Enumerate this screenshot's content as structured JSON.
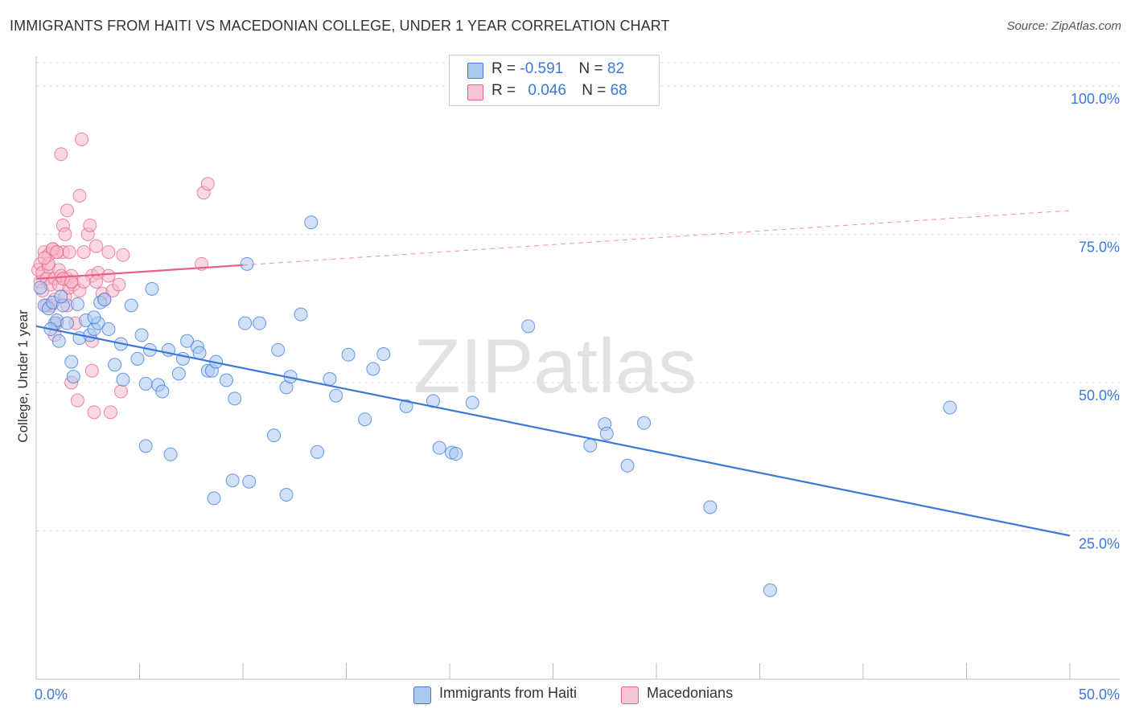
{
  "title": "IMMIGRANTS FROM HAITI VS MACEDONIAN COLLEGE, UNDER 1 YEAR CORRELATION CHART",
  "source": "Source: ZipAtlas.com",
  "watermark": "ZIPatlas",
  "colors": {
    "blue": "#3b78d8",
    "blue_fill": "#aac8f0",
    "pink": "#e8608a",
    "pink_fill": "#f6b8cb",
    "grid": "#dddddd"
  },
  "legend": {
    "row1": {
      "r_label": "R = ",
      "r_value": "-0.591",
      "n_label": "N = ",
      "n_value": "82"
    },
    "row2": {
      "r_label": "R = ",
      "r_value": "0.046",
      "n_label": "N = ",
      "n_value": "68"
    }
  },
  "chart_data": {
    "type": "scatter",
    "title": "IMMIGRANTS FROM HAITI VS MACEDONIAN COLLEGE, UNDER 1 YEAR CORRELATION CHART",
    "xlabel": "",
    "ylabel": "College, Under 1 year",
    "xlim": [
      0,
      50
    ],
    "ylim": [
      0,
      105
    ],
    "x_tick_labels": [
      "0.0%",
      "50.0%"
    ],
    "y_tick_labels": [
      "25.0%",
      "50.0%",
      "75.0%",
      "100.0%"
    ],
    "y_ticks": [
      25,
      50,
      75,
      100
    ],
    "grid": true,
    "legend_position": "bottom",
    "series": [
      {
        "name": "Immigrants from Haiti",
        "color": "#3b78d8",
        "trend": {
          "x": [
            0,
            50
          ],
          "y": [
            59.5,
            24.2
          ],
          "style": "solid"
        },
        "points": [
          [
            0.2,
            66
          ],
          [
            0.4,
            63
          ],
          [
            0.6,
            62.5
          ],
          [
            0.8,
            63.5
          ],
          [
            0.9,
            60
          ],
          [
            1.0,
            60.5
          ],
          [
            1.1,
            57
          ],
          [
            1.3,
            63
          ],
          [
            1.5,
            60
          ],
          [
            1.7,
            53.5
          ],
          [
            1.8,
            51
          ],
          [
            2.0,
            63.2
          ],
          [
            2.1,
            57.5
          ],
          [
            2.4,
            60.5
          ],
          [
            2.6,
            58
          ],
          [
            2.8,
            59
          ],
          [
            3.0,
            60
          ],
          [
            3.1,
            63.5
          ],
          [
            3.3,
            64
          ],
          [
            3.5,
            59
          ],
          [
            3.8,
            53
          ],
          [
            4.1,
            56.5
          ],
          [
            4.2,
            50.5
          ],
          [
            4.6,
            63
          ],
          [
            4.9,
            54
          ],
          [
            5.1,
            58
          ],
          [
            5.3,
            49.8
          ],
          [
            5.5,
            55.5
          ],
          [
            5.9,
            49.6
          ],
          [
            6.1,
            48.5
          ],
          [
            6.4,
            55.5
          ],
          [
            6.9,
            51.5
          ],
          [
            7.1,
            54
          ],
          [
            7.3,
            57
          ],
          [
            7.8,
            56
          ],
          [
            7.9,
            55
          ],
          [
            8.3,
            52
          ],
          [
            8.5,
            52
          ],
          [
            8.7,
            53.5
          ],
          [
            9.2,
            50.4
          ],
          [
            9.6,
            47.3
          ],
          [
            10.1,
            60
          ],
          [
            10.8,
            60
          ],
          [
            11.7,
            55.5
          ],
          [
            12.1,
            49.2
          ],
          [
            12.3,
            51
          ],
          [
            12.8,
            61.5
          ],
          [
            14.2,
            50.6
          ],
          [
            14.5,
            47.8
          ],
          [
            15.1,
            54.7
          ],
          [
            15.9,
            43.8
          ],
          [
            16.3,
            52.3
          ],
          [
            16.8,
            54.8
          ],
          [
            17.9,
            46
          ],
          [
            19.2,
            46.9
          ],
          [
            21.1,
            46.6
          ],
          [
            23.8,
            59.5
          ],
          [
            27.5,
            43
          ],
          [
            27.6,
            41.4
          ],
          [
            29.4,
            43.2
          ],
          [
            5.3,
            39.3
          ],
          [
            6.5,
            37.9
          ],
          [
            8.6,
            30.5
          ],
          [
            9.5,
            33.5
          ],
          [
            10.3,
            33.3
          ],
          [
            11.5,
            41.1
          ],
          [
            12.1,
            31.1
          ],
          [
            13.6,
            38.3
          ],
          [
            19.5,
            39
          ],
          [
            20.1,
            38.2
          ],
          [
            20.3,
            38
          ],
          [
            26.8,
            39.4
          ],
          [
            28.6,
            36
          ],
          [
            32.6,
            29
          ],
          [
            35.5,
            15
          ],
          [
            44.2,
            45.8
          ],
          [
            5.6,
            65.8
          ],
          [
            13.3,
            77
          ],
          [
            10.2,
            70
          ],
          [
            2.8,
            61
          ],
          [
            1.2,
            64.5
          ],
          [
            0.7,
            59
          ]
        ]
      },
      {
        "name": "Macedonians",
        "color": "#e8608a",
        "trend": {
          "x": [
            0,
            10
          ],
          "y": [
            67.5,
            69.8
          ],
          "style": "solid",
          "extended": {
            "x": [
              10,
              50
            ],
            "y": [
              69.8,
              79
            ]
          }
        },
        "points": [
          [
            0.1,
            69
          ],
          [
            0.2,
            70
          ],
          [
            0.2,
            67
          ],
          [
            0.3,
            65.5
          ],
          [
            0.3,
            68.5
          ],
          [
            0.4,
            72
          ],
          [
            0.5,
            67.5
          ],
          [
            0.6,
            71.5
          ],
          [
            0.6,
            69.5
          ],
          [
            0.7,
            66.5
          ],
          [
            0.7,
            63
          ],
          [
            0.8,
            72.5
          ],
          [
            0.9,
            64
          ],
          [
            0.9,
            67.5
          ],
          [
            1.0,
            72
          ],
          [
            1.1,
            66.5
          ],
          [
            1.1,
            69
          ],
          [
            1.2,
            68
          ],
          [
            1.3,
            72
          ],
          [
            1.4,
            64.5
          ],
          [
            1.5,
            67.5
          ],
          [
            1.5,
            63
          ],
          [
            1.6,
            66
          ],
          [
            1.7,
            68
          ],
          [
            1.8,
            66.5
          ],
          [
            1.9,
            60
          ],
          [
            2.1,
            65.5
          ],
          [
            2.3,
            72
          ],
          [
            2.5,
            75
          ],
          [
            2.6,
            76.5
          ],
          [
            2.7,
            68
          ],
          [
            2.9,
            73
          ],
          [
            3.0,
            68.5
          ],
          [
            3.2,
            65
          ],
          [
            3.3,
            64
          ],
          [
            3.5,
            68
          ],
          [
            3.7,
            65.5
          ],
          [
            4.0,
            66.5
          ],
          [
            1.2,
            88.5
          ],
          [
            2.2,
            91
          ],
          [
            1.5,
            79
          ],
          [
            2.1,
            81.5
          ],
          [
            8.1,
            82
          ],
          [
            8.3,
            83.5
          ],
          [
            1.3,
            76.5
          ],
          [
            1.4,
            75
          ],
          [
            0.8,
            72.5
          ],
          [
            1.6,
            72
          ],
          [
            4.2,
            71.5
          ],
          [
            8.0,
            70
          ],
          [
            0.5,
            63
          ],
          [
            0.9,
            58
          ],
          [
            1.0,
            60
          ],
          [
            1.3,
            67.5
          ],
          [
            1.7,
            67
          ],
          [
            2.7,
            57
          ],
          [
            2.7,
            52
          ],
          [
            1.7,
            50
          ],
          [
            2.0,
            47
          ],
          [
            2.8,
            45
          ],
          [
            3.6,
            45
          ],
          [
            4.1,
            48.5
          ],
          [
            2.9,
            67
          ],
          [
            3.5,
            72
          ],
          [
            1.0,
            72
          ],
          [
            0.6,
            70
          ],
          [
            0.4,
            71
          ],
          [
            2.3,
            67
          ]
        ]
      }
    ]
  }
}
